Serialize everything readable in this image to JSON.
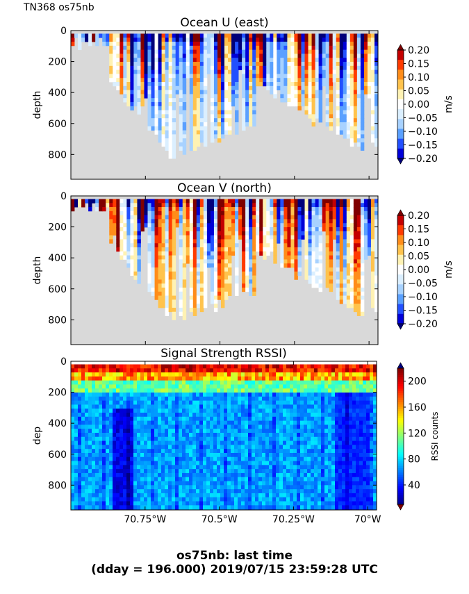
{
  "corner_label": "TN368 os75nb",
  "footer": {
    "line1": "os75nb: last time",
    "line2": "(dday = 196.000) 2019/07/15 23:59:28 UTC"
  },
  "chart_data": [
    {
      "type": "heatmap",
      "title": "Ocean U (east)",
      "ylabel": "depth",
      "y_ticks": [
        "0",
        "200",
        "400",
        "600",
        "800"
      ],
      "ylim": [
        960,
        0
      ],
      "xlim": [
        -71.0,
        -69.97
      ],
      "x_ticks": [
        -70.75,
        -70.5,
        -70.25,
        -70.0
      ],
      "x_tick_labels": [],
      "colorbar": {
        "label": "m/s",
        "ticks": [
          "0.20",
          "0.15",
          "0.10",
          "0.05",
          "0.00",
          "−0.05",
          "−0.10",
          "−0.15",
          "−0.20"
        ],
        "colors": [
          "#7f0000",
          "#c40000",
          "#ff3a00",
          "#ff8d1a",
          "#ffc34d",
          "#fff2b3",
          "#ffffff",
          "#dbefff",
          "#a8d2ff",
          "#5aa0ff",
          "#2250ff",
          "#0000d8",
          "#00007a"
        ],
        "extend": "both"
      },
      "colormap": "jet-diverging",
      "vmin": -0.2,
      "vmax": 0.2,
      "no_data_color": "#d9d9d9",
      "seed": 11
    },
    {
      "type": "heatmap",
      "title": "Ocean V (north)",
      "ylabel": "depth",
      "y_ticks": [
        "0",
        "200",
        "400",
        "600",
        "800"
      ],
      "ylim": [
        960,
        0
      ],
      "xlim": [
        -71.0,
        -69.97
      ],
      "x_ticks": [
        -70.75,
        -70.5,
        -70.25,
        -70.0
      ],
      "x_tick_labels": [],
      "colorbar": {
        "label": "m/s",
        "ticks": [
          "0.20",
          "0.15",
          "0.10",
          "0.05",
          "0.00",
          "−0.05",
          "−0.10",
          "−0.15",
          "−0.20"
        ],
        "colors": [
          "#7f0000",
          "#c40000",
          "#ff3a00",
          "#ff8d1a",
          "#ffc34d",
          "#fff2b3",
          "#ffffff",
          "#dbefff",
          "#a8d2ff",
          "#5aa0ff",
          "#2250ff",
          "#0000d8",
          "#00007a"
        ],
        "extend": "both"
      },
      "colormap": "jet-diverging",
      "vmin": -0.2,
      "vmax": 0.2,
      "no_data_color": "#d9d9d9",
      "seed": 29
    },
    {
      "type": "heatmap",
      "title": "Signal Strength RSSI)",
      "ylabel": "dep",
      "y_ticks": [
        "0",
        "200",
        "400",
        "600",
        "800"
      ],
      "ylim": [
        960,
        0
      ],
      "xlim": [
        -71.0,
        -69.97
      ],
      "x_ticks": [
        -70.75,
        -70.5,
        -70.25,
        -70.0
      ],
      "x_tick_labels": [
        "70.75°W",
        "70.5°W",
        "70.25°W",
        "70°W"
      ],
      "colorbar": {
        "label": "RSSI counts",
        "ticks": [
          "200",
          "160",
          "120",
          "80",
          "40"
        ],
        "tick_values": [
          200,
          160,
          120,
          80,
          40
        ],
        "vmin": 10,
        "vmax": 220,
        "colors": [
          "#00007f",
          "#0000ff",
          "#007fff",
          "#00ffff",
          "#7fff7f",
          "#ffff00",
          "#ff7f00",
          "#ff0000",
          "#7f0000"
        ],
        "extend": "both"
      },
      "colormap": "jet",
      "vmin": 10,
      "vmax": 220,
      "seed": 53
    }
  ]
}
